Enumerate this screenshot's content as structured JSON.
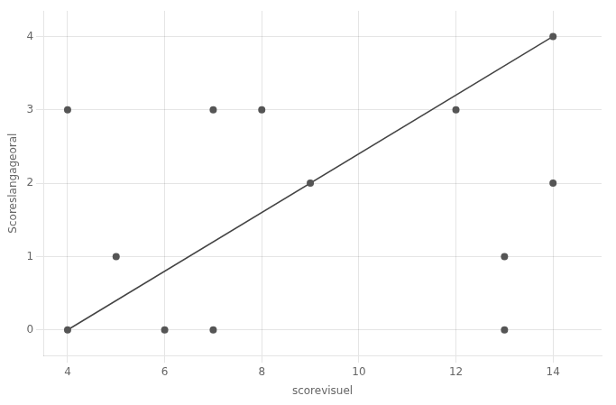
{
  "chart_data": {
    "type": "scatter",
    "xlabel": "scorevisuel",
    "ylabel": "Scoreslangageoral",
    "series": [
      {
        "type": "scatter",
        "x": [
          4,
          4,
          5,
          6,
          7,
          7,
          8,
          9,
          12,
          13,
          13,
          14,
          14
        ],
        "values": [
          0,
          3,
          1,
          0,
          0,
          3,
          3,
          2,
          3,
          1,
          0,
          4,
          2
        ],
        "color": "#555555"
      },
      {
        "type": "line",
        "x": [
          4,
          14
        ],
        "values": [
          0,
          4
        ],
        "color": "#444444"
      }
    ],
    "xlim": [
      3.5,
      15.0
    ],
    "ylim": [
      -0.35,
      4.35
    ],
    "xticks": [
      4,
      6,
      8,
      10,
      12,
      14
    ],
    "yticks": [
      0,
      1,
      2,
      3,
      4
    ],
    "grid": true
  }
}
